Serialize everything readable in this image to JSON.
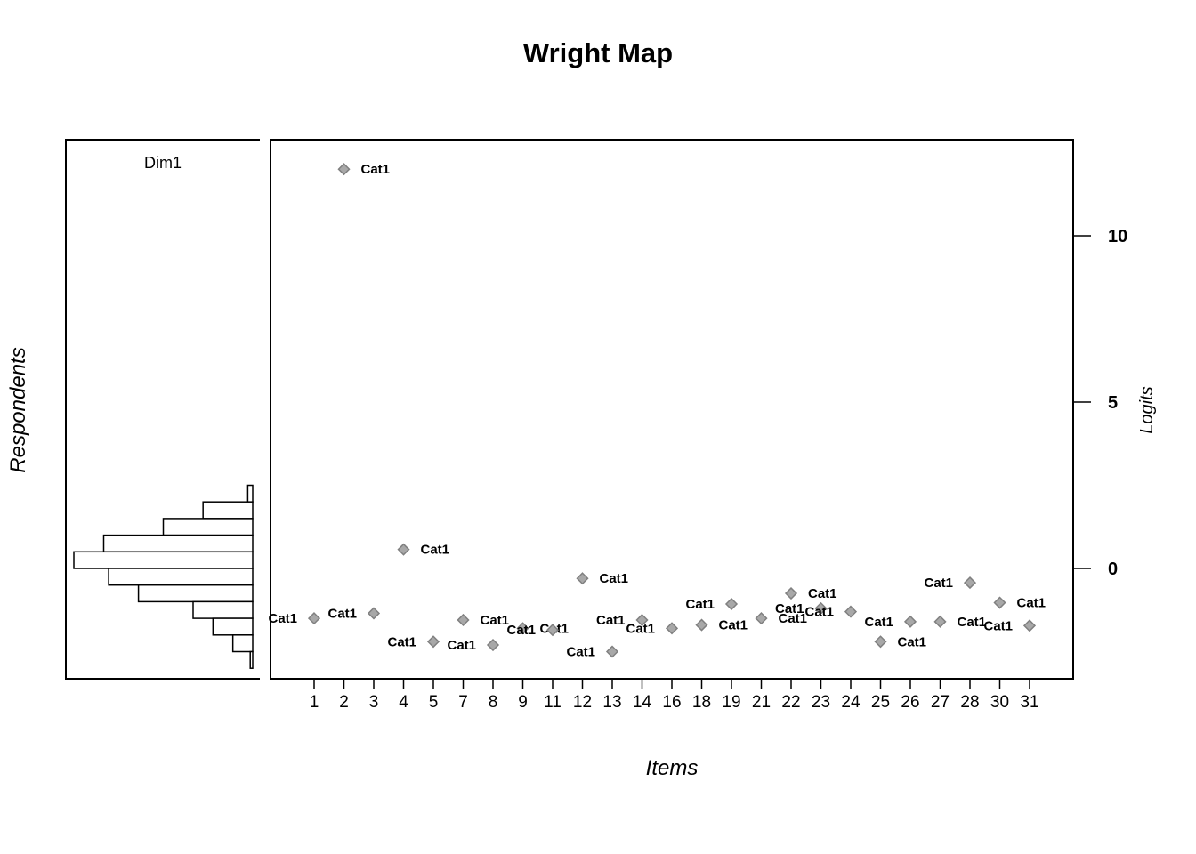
{
  "chart_data": {
    "type": "scatter",
    "title": "Wright Map",
    "xlabel": "Items",
    "ylabel": "Logits",
    "respondents_label": "Respondents",
    "dimension_label": "Dim1",
    "ylim": [
      -3.3,
      12.9
    ],
    "yticks": [
      0,
      5,
      10
    ],
    "grid": false,
    "items": [
      {
        "item": "1",
        "logit": -1.5,
        "label": "Cat1"
      },
      {
        "item": "2",
        "logit": 12.0,
        "label": "Cat1"
      },
      {
        "item": "3",
        "logit": -1.35,
        "label": "Cat1"
      },
      {
        "item": "4",
        "logit": 0.57,
        "label": "Cat1"
      },
      {
        "item": "5",
        "logit": -2.2,
        "label": "Cat1"
      },
      {
        "item": "7",
        "logit": -1.55,
        "label": "Cat1"
      },
      {
        "item": "8",
        "logit": -2.3,
        "label": "Cat1"
      },
      {
        "item": "9",
        "logit": -1.8,
        "label": "Cat1"
      },
      {
        "item": "11",
        "logit": -1.85,
        "label": "Cat1"
      },
      {
        "item": "12",
        "logit": -0.3,
        "label": "Cat1"
      },
      {
        "item": "13",
        "logit": -2.5,
        "label": "Cat1"
      },
      {
        "item": "14",
        "logit": -1.55,
        "label": "Cat1"
      },
      {
        "item": "16",
        "logit": -1.8,
        "label": "Cat1"
      },
      {
        "item": "18",
        "logit": -1.7,
        "label": "Cat1"
      },
      {
        "item": "19",
        "logit": -1.07,
        "label": "Cat1"
      },
      {
        "item": "21",
        "logit": -1.5,
        "label": "Cat1"
      },
      {
        "item": "22",
        "logit": -0.75,
        "label": "Cat1"
      },
      {
        "item": "23",
        "logit": -1.2,
        "label": "Cat1"
      },
      {
        "item": "24",
        "logit": -1.3,
        "label": "Cat1"
      },
      {
        "item": "25",
        "logit": -2.2,
        "label": "Cat1"
      },
      {
        "item": "26",
        "logit": -1.6,
        "label": "Cat1"
      },
      {
        "item": "27",
        "logit": -1.6,
        "label": "Cat1"
      },
      {
        "item": "28",
        "logit": -0.43,
        "label": "Cat1"
      },
      {
        "item": "30",
        "logit": -1.03,
        "label": "Cat1"
      },
      {
        "item": "31",
        "logit": -1.72,
        "label": "Cat1"
      }
    ],
    "respondent_histogram": {
      "bins": [
        {
          "from": 2.0,
          "to": 2.5,
          "count": 1
        },
        {
          "from": 1.5,
          "to": 2.0,
          "count": 10
        },
        {
          "from": 1.0,
          "to": 1.5,
          "count": 18
        },
        {
          "from": 0.5,
          "to": 1.0,
          "count": 30
        },
        {
          "from": 0.0,
          "to": 0.5,
          "count": 36
        },
        {
          "from": -0.5,
          "to": 0.0,
          "count": 29
        },
        {
          "from": -1.0,
          "to": -0.5,
          "count": 23
        },
        {
          "from": -1.5,
          "to": -1.0,
          "count": 12
        },
        {
          "from": -2.0,
          "to": -1.5,
          "count": 8
        },
        {
          "from": -2.5,
          "to": -2.0,
          "count": 4
        },
        {
          "from": -3.0,
          "to": -2.5,
          "count": 0.5
        }
      ]
    },
    "colors": {
      "point_fill": "#a8a8a8",
      "point_stroke": "#808080",
      "axis": "#000000"
    }
  }
}
